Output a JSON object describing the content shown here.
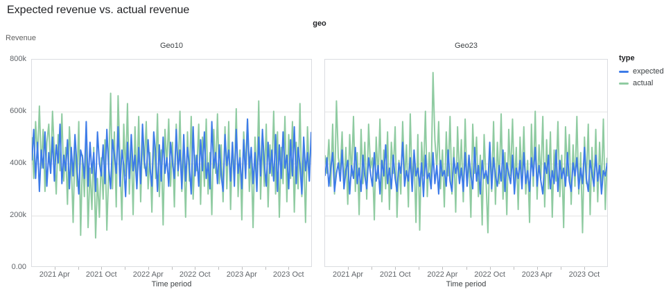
{
  "page": {
    "title": "Expected revenue vs. actual revenue"
  },
  "facet_label": "geo",
  "y_axis": {
    "title": "Revenue",
    "tick_labels": [
      "0.00",
      "200k",
      "400k",
      "600k",
      "800k"
    ]
  },
  "x_axis": {
    "title": "Time period",
    "tick_labels": [
      "2021 Apr",
      "2021 Oct",
      "2022 Apr",
      "2022 Oct",
      "2023 Apr",
      "2023 Oct"
    ]
  },
  "legend": {
    "title": "type",
    "items": [
      {
        "label": "expected",
        "color": "#3d7be8"
      },
      {
        "label": "actual",
        "color": "#8fcba1"
      }
    ]
  },
  "chart_data": [
    {
      "type": "line",
      "title": "Geo10",
      "xlabel": "Time period",
      "ylabel": "Revenue",
      "x_range": [
        "2021-01",
        "2023-12"
      ],
      "x_resolution": "weekly",
      "ylim": [
        0,
        800000
      ],
      "values_unit": "thousands (k) of revenue",
      "grid": "horizontal",
      "series": [
        {
          "name": "expected",
          "color": "#3d7be8",
          "values": [
            410,
            530,
            340,
            480,
            290,
            450,
            380,
            520,
            310,
            440,
            360,
            500,
            330,
            470,
            400,
            550,
            320,
            430,
            370,
            490,
            300,
            460,
            350,
            510,
            390,
            280,
            450,
            420,
            340,
            560,
            310,
            480,
            360,
            440,
            290,
            520,
            400,
            350,
            470,
            320,
            530,
            380,
            300,
            490,
            430,
            360,
            540,
            310,
            450,
            390,
            270,
            480,
            340,
            510,
            370,
            430,
            300,
            460,
            320,
            550,
            410,
            350,
            490,
            380,
            310,
            520,
            440,
            290,
            470,
            330,
            500,
            360,
            420,
            310,
            480,
            400,
            340,
            530,
            370,
            450,
            300,
            510,
            330,
            460,
            390,
            280,
            540,
            350,
            430,
            310,
            490,
            370,
            520,
            340,
            400,
            300,
            560,
            380,
            440,
            320,
            470,
            350,
            290,
            510,
            390,
            450,
            330,
            480,
            310,
            530,
            360,
            420,
            300,
            490,
            340,
            570,
            380,
            460,
            320,
            440,
            290,
            500,
            350,
            530,
            400,
            310,
            480,
            360,
            450,
            330,
            510,
            290,
            470,
            340,
            520,
            380,
            430,
            300,
            490,
            350,
            540,
            320,
            460,
            390,
            280,
            500,
            370,
            440,
            330,
            520
          ]
        },
        {
          "name": "actual",
          "color": "#8fcba1",
          "values": [
            500,
            340,
            560,
            420,
            620,
            380,
            530,
            290,
            480,
            550,
            360,
            600,
            440,
            280,
            510,
            370,
            590,
            330,
            460,
            240,
            540,
            400,
            170,
            480,
            310,
            560,
            120,
            430,
            270,
            500,
            150,
            380,
            220,
            460,
            110,
            340,
            190,
            420,
            260,
            490,
            140,
            370,
            670,
            300,
            520,
            230,
            660,
            410,
            180,
            550,
            350,
            630,
            280,
            470,
            200,
            540,
            320,
            580,
            250,
            490,
            380,
            560,
            300,
            440,
            210,
            510,
            340,
            590,
            270,
            450,
            160,
            530,
            390,
            570,
            310,
            480,
            230,
            550,
            350,
            600,
            290,
            460,
            190,
            520,
            330,
            580,
            260,
            430,
            370,
            550,
            240,
            500,
            310,
            570,
            280,
            440,
            200,
            530,
            360,
            590,
            320,
            470,
            250,
            540,
            300,
            560,
            220,
            480,
            340,
            610,
            270,
            450,
            180,
            520,
            380,
            570,
            290,
            430,
            150,
            500,
            330,
            640,
            260,
            490,
            310,
            550,
            230,
            470,
            350,
            600,
            280,
            520,
            190,
            460,
            320,
            580,
            250,
            510,
            340,
            560,
            210,
            480,
            300,
            630,
            270,
            440,
            170,
            540,
            360,
            490
          ]
        }
      ]
    },
    {
      "type": "line",
      "title": "Geo23",
      "xlabel": "Time period",
      "ylabel": "Revenue",
      "x_range": [
        "2021-01",
        "2023-12"
      ],
      "x_resolution": "weekly",
      "ylim": [
        0,
        800000
      ],
      "values_unit": "thousands (k) of revenue",
      "grid": "horizontal",
      "series": [
        {
          "name": "expected",
          "color": "#3d7be8",
          "values": [
            350,
            420,
            310,
            380,
            440,
            290,
            360,
            400,
            330,
            450,
            300,
            370,
            410,
            280,
            390,
            340,
            460,
            320,
            380,
            290,
            430,
            350,
            300,
            420,
            360,
            310,
            440,
            330,
            390,
            280,
            410,
            350,
            470,
            320,
            380,
            300,
            430,
            340,
            290,
            400,
            360,
            480,
            310,
            370,
            330,
            420,
            290,
            450,
            350,
            380,
            310,
            400,
            270,
            430,
            340,
            360,
            300,
            440,
            320,
            390,
            280,
            410,
            350,
            370,
            310,
            450,
            330,
            290,
            420,
            360,
            400,
            320,
            380,
            290,
            440,
            310,
            430,
            350,
            300,
            460,
            330,
            390,
            280,
            410,
            340,
            370,
            320,
            480,
            300,
            420,
            350,
            310,
            390,
            330,
            450,
            290,
            400,
            360,
            320,
            430,
            280,
            380,
            340,
            410,
            300,
            440,
            320,
            370,
            290,
            420,
            350,
            460,
            310,
            390,
            330,
            280,
            400,
            360,
            430,
            300,
            370,
            320,
            450,
            290,
            410,
            340,
            380,
            310,
            440,
            330,
            290,
            400,
            350,
            420,
            300,
            380,
            320,
            460,
            340,
            290,
            410,
            360,
            310,
            430,
            330,
            390,
            280,
            370,
            350,
            400
          ]
        },
        {
          "name": "actual",
          "color": "#8fcba1",
          "values": [
            430,
            360,
            490,
            310,
            550,
            280,
            640,
            420,
            370,
            520,
            300,
            460,
            240,
            510,
            350,
            580,
            290,
            440,
            200,
            530,
            320,
            480,
            260,
            550,
            380,
            420,
            180,
            500,
            340,
            570,
            250,
            450,
            300,
            520,
            220,
            480,
            360,
            540,
            190,
            410,
            280,
            560,
            330,
            470,
            230,
            590,
            310,
            430,
            170,
            510,
            140,
            480,
            350,
            600,
            270,
            440,
            320,
            750,
            490,
            380,
            560,
            300,
            450,
            230,
            520,
            350,
            580,
            280,
            460,
            210,
            540,
            330,
            490,
            250,
            570,
            310,
            420,
            190,
            550,
            360,
            500,
            270,
            430,
            160,
            510,
            340,
            130,
            470,
            290,
            560,
            240,
            480,
            320,
            590,
            260,
            440,
            200,
            530,
            350,
            570,
            300,
            460,
            220,
            500,
            330,
            540,
            280,
            410,
            170,
            550,
            310,
            600,
            260,
            470,
            340,
            580,
            230,
            490,
            300,
            520,
            190,
            450,
            330,
            560,
            270,
            430,
            150,
            540,
            350,
            510,
            240,
            470,
            310,
            580,
            280,
            440,
            130,
            500,
            320,
            550,
            200,
            460,
            290,
            530,
            250,
            480,
            310,
            570,
            220,
            420
          ]
        }
      ]
    }
  ]
}
